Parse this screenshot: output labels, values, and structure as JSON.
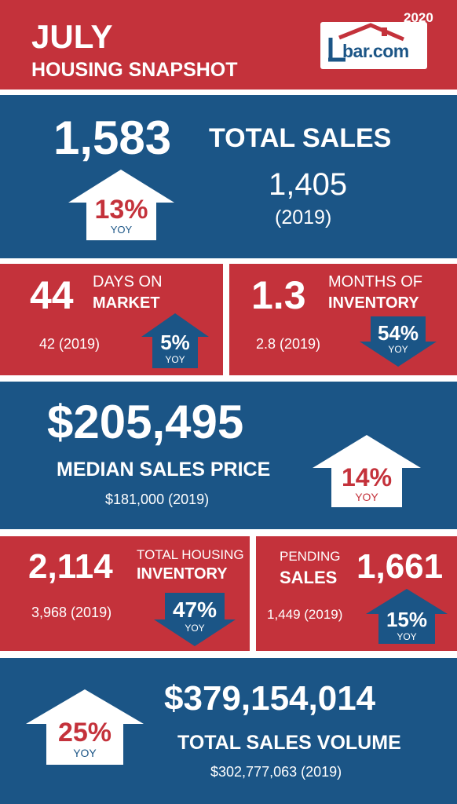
{
  "header": {
    "month": "JULY",
    "subtitle": "HOUSING SNAPSHOT",
    "year": "2020",
    "logo_text": "bar.com",
    "logo_letter": "L"
  },
  "total_sales": {
    "value": "1,583",
    "label": "TOTAL SALES",
    "prior_value": "1,405",
    "prior_year": "(2019)",
    "change": "13%",
    "direction": "up",
    "yoy": "YOY"
  },
  "days_on_market": {
    "value": "44",
    "label_line1": "DAYS ON",
    "label_line2": "MARKET",
    "prior": "42 (2019)",
    "change": "5%",
    "direction": "up",
    "yoy": "YOY"
  },
  "months_inventory": {
    "value": "1.3",
    "label_line1": "MONTHS OF",
    "label_line2": "INVENTORY",
    "prior": "2.8 (2019)",
    "change": "54%",
    "direction": "down",
    "yoy": "YOY"
  },
  "median_price": {
    "value": "$205,495",
    "label": "MEDIAN SALES PRICE",
    "prior": "$181,000 (2019)",
    "change": "14%",
    "direction": "up",
    "yoy": "YOY"
  },
  "housing_inventory": {
    "value": "2,114",
    "label_line1": "TOTAL HOUSING",
    "label_line2": "INVENTORY",
    "prior": "3,968 (2019)",
    "change": "47%",
    "direction": "down",
    "yoy": "YOY"
  },
  "pending_sales": {
    "value": "1,661",
    "label_line1": "PENDING",
    "label_line2": "SALES",
    "prior": "1,449 (2019)",
    "change": "15%",
    "direction": "up",
    "yoy": "YOY"
  },
  "sales_volume": {
    "value": "$379,154,014",
    "label": "TOTAL SALES VOLUME",
    "prior": "$302,777,063 (2019)",
    "change": "25%",
    "direction": "up",
    "yoy": "YOY"
  },
  "colors": {
    "red": "#c4323b",
    "blue": "#1b5586",
    "white": "#ffffff"
  }
}
